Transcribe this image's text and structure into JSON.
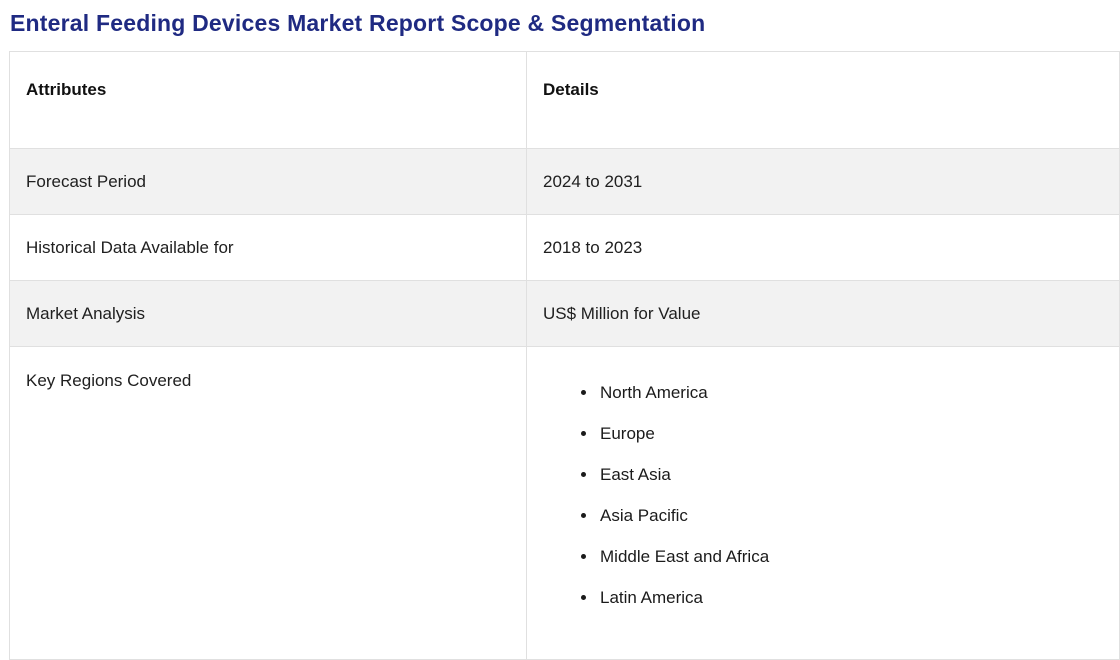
{
  "page": {
    "title": "Enteral Feeding Devices Market Report Scope & Segmentation"
  },
  "colors": {
    "title": "#1f2a82",
    "alt_row_bg": "#f2f2f2",
    "border": "#e0e0e0",
    "text": "#202020"
  },
  "table": {
    "headers": [
      "Attributes",
      "Details"
    ],
    "rows": [
      {
        "attribute": "Forecast Period",
        "detail": "2024 to 2031"
      },
      {
        "attribute": "Historical Data Available for",
        "detail": "2018 to 2023"
      },
      {
        "attribute": "Market Analysis",
        "detail": "US$ Million for Value"
      },
      {
        "attribute": "Key Regions Covered",
        "detail_list": [
          "North America",
          "Europe",
          "East Asia",
          "Asia Pacific",
          "Middle East and Africa",
          "Latin America"
        ]
      }
    ]
  }
}
